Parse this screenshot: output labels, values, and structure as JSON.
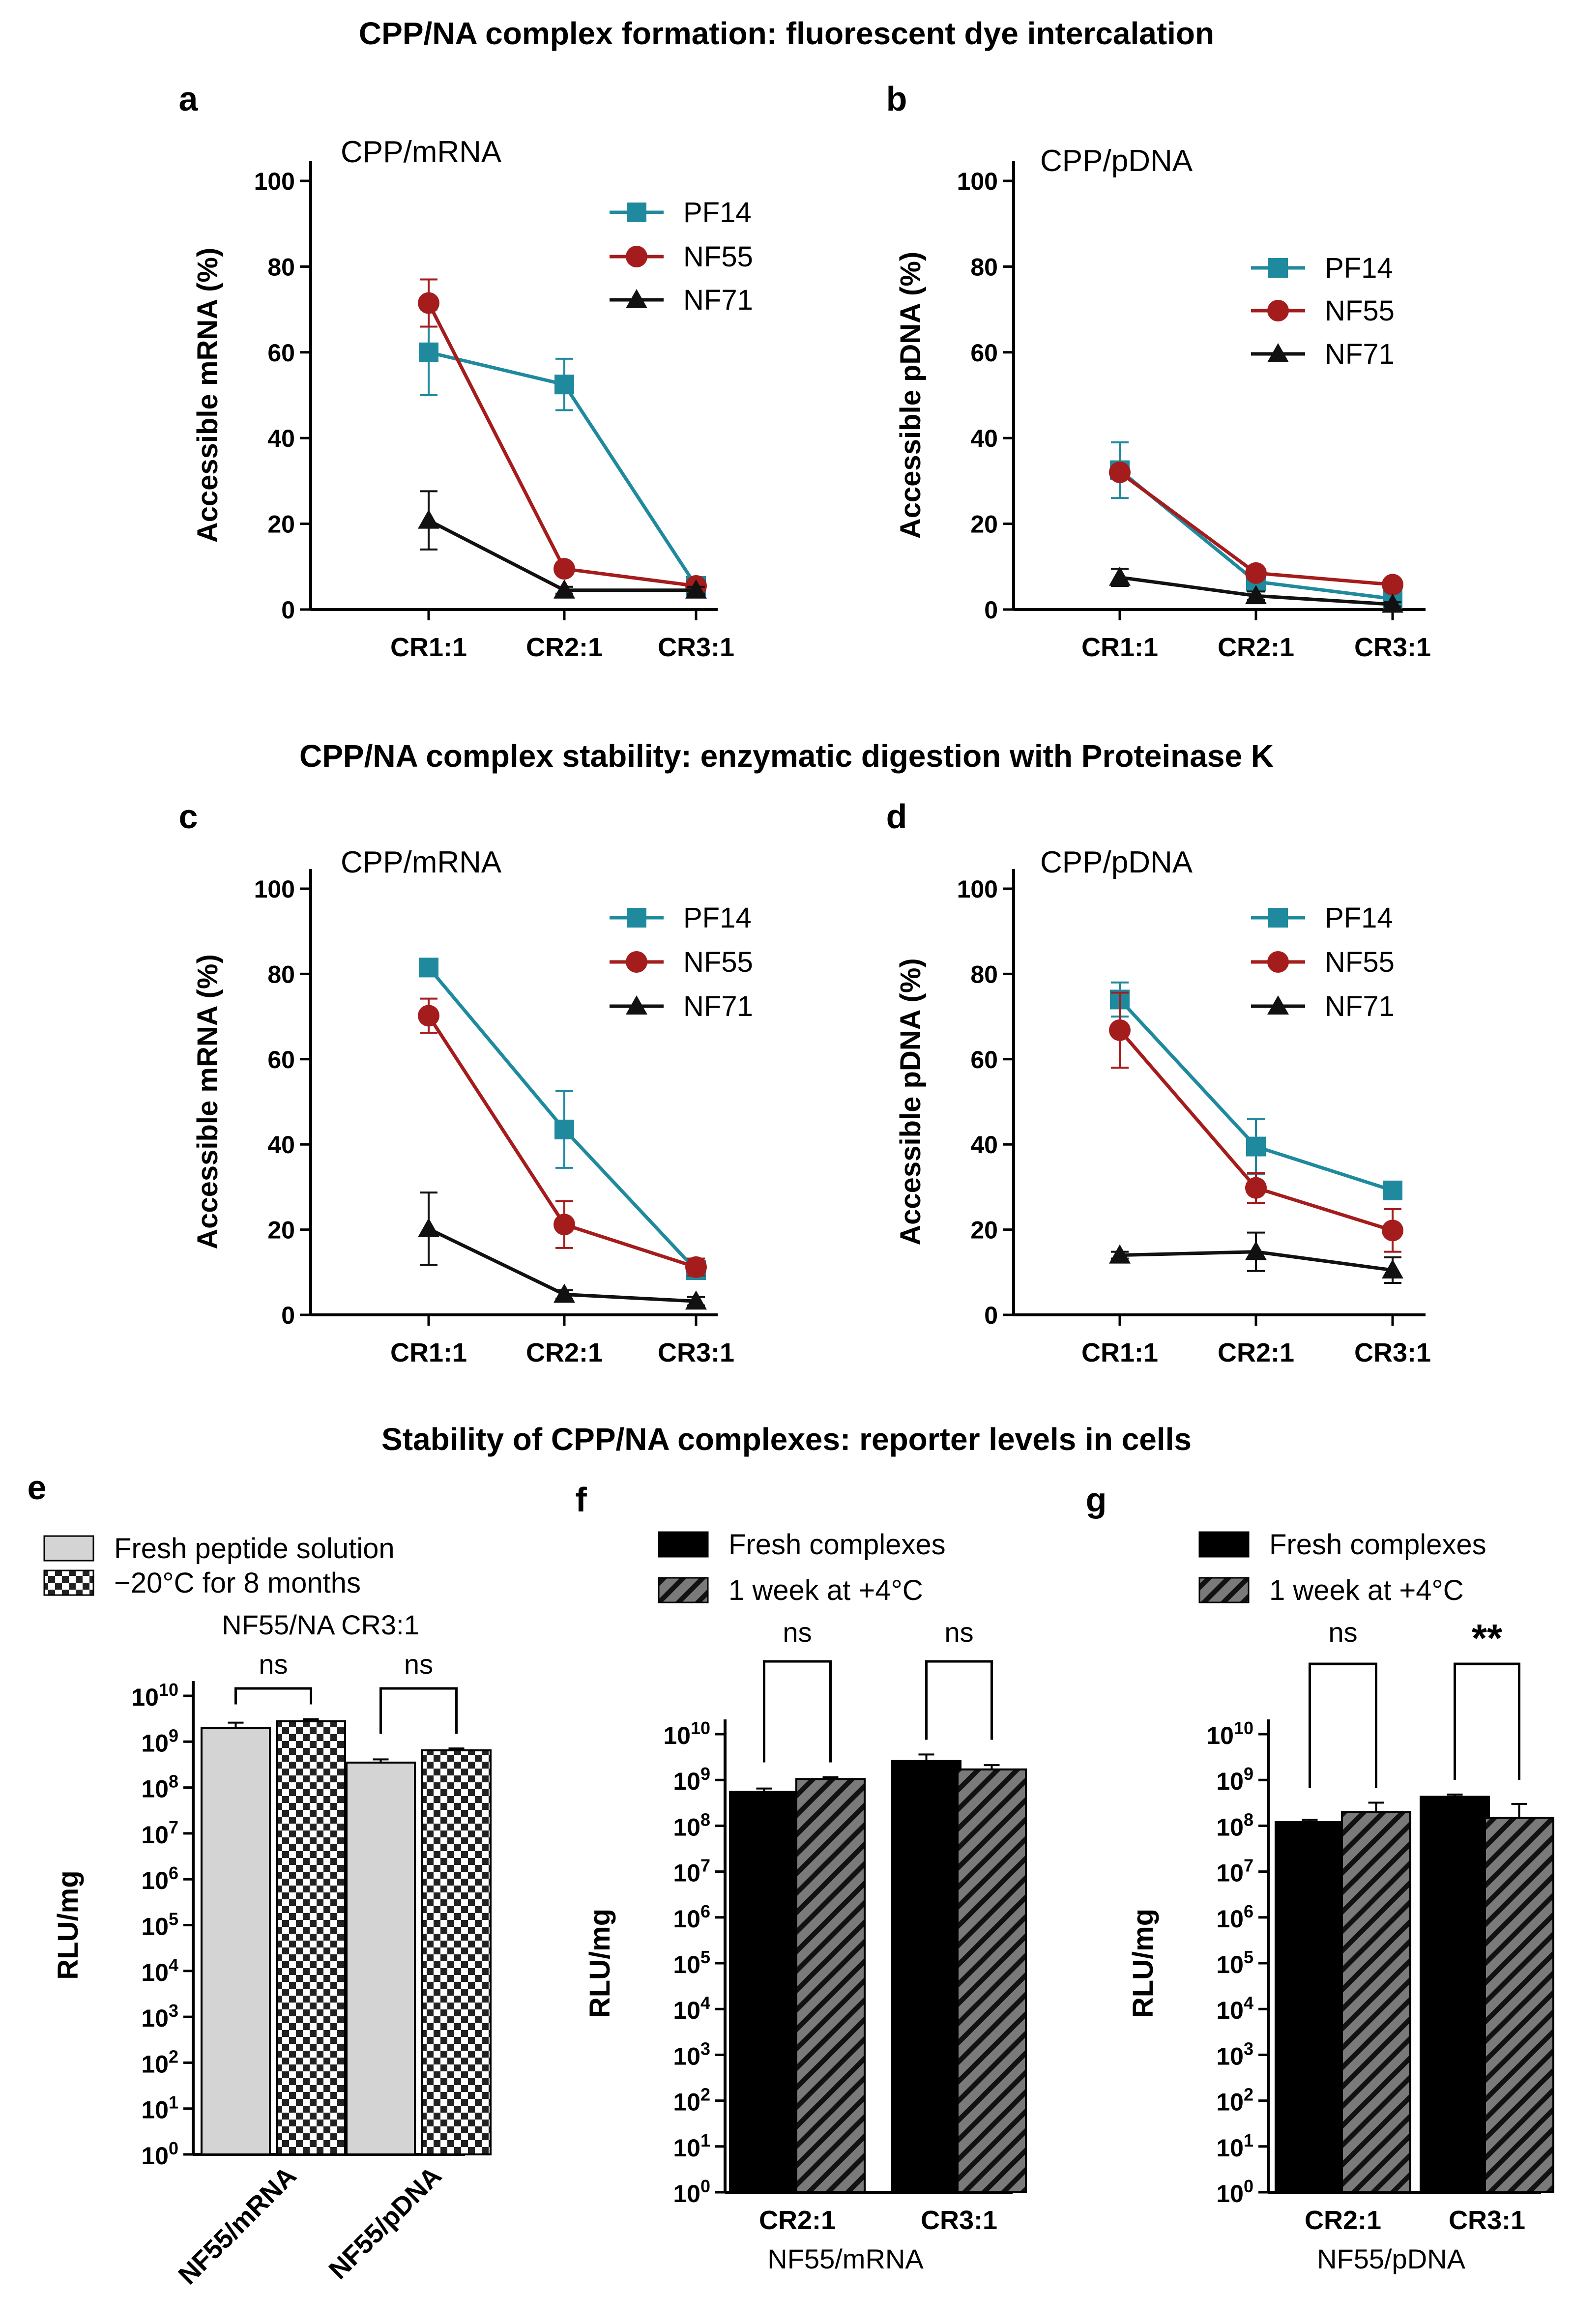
{
  "section_titles": [
    "CPP/NA complex formation: fluorescent dye intercalation",
    "CPP/NA complex stability: enzymatic digestion with Proteinase K",
    "Stability of CPP/NA complexes: reporter levels in cells"
  ],
  "colors": {
    "PF14": "#1f8a9e",
    "NF55": "#a51c1c",
    "NF71": "#111111",
    "fresh_f": "#000000",
    "week": "#7a7a7a",
    "fresh_e": "#d4d4d4"
  },
  "chart_data": [
    {
      "panel": "a",
      "type": "line",
      "title": "CPP/mRNA",
      "xlabel": "",
      "ylabel": "Accessible mRNA (%)",
      "ylim": [
        0,
        100
      ],
      "yticks": [
        "0",
        "20",
        "40",
        "60",
        "80",
        "100"
      ],
      "categories": [
        "CR1:1",
        "CR2:1",
        "CR3:1"
      ],
      "series": [
        {
          "name": "PF14",
          "values": [
            60,
            52.5,
            5.5
          ],
          "errors": [
            10,
            6,
            1.5
          ]
        },
        {
          "name": "NF55",
          "values": [
            71.5,
            9.5,
            5.5
          ],
          "errors": [
            5.5,
            1,
            0.5
          ]
        },
        {
          "name": "NF71",
          "values": [
            20.8,
            4.5,
            4.5
          ],
          "errors": [
            6.8,
            0.8,
            0.8
          ]
        }
      ]
    },
    {
      "panel": "b",
      "type": "line",
      "title": "CPP/pDNA",
      "xlabel": "",
      "ylabel": "Accessible pDNA (%)",
      "ylim": [
        0,
        100
      ],
      "yticks": [
        "0",
        "20",
        "40",
        "60",
        "80",
        "100"
      ],
      "categories": [
        "CR1:1",
        "CR2:1",
        "CR3:1"
      ],
      "series": [
        {
          "name": "PF14",
          "values": [
            32.5,
            6.5,
            2.5
          ],
          "errors": [
            6.5,
            1,
            0.5
          ]
        },
        {
          "name": "NF55",
          "values": [
            32,
            8.5,
            5.8
          ],
          "errors": [
            1,
            0.8,
            0.5
          ]
        },
        {
          "name": "NF71",
          "values": [
            7.5,
            3.2,
            1.2
          ],
          "errors": [
            2,
            1,
            0.5
          ]
        }
      ]
    },
    {
      "panel": "c",
      "type": "line",
      "title": "CPP/mRNA",
      "xlabel": "",
      "ylabel": "Accessible mRNA (%)",
      "ylim": [
        0,
        100
      ],
      "yticks": [
        "0",
        "20",
        "40",
        "60",
        "80",
        "100"
      ],
      "categories": [
        "CR1:1",
        "CR2:1",
        "CR3:1"
      ],
      "series": [
        {
          "name": "PF14",
          "values": [
            81.5,
            43.5,
            10.5
          ],
          "errors": [
            1.5,
            9,
            2
          ]
        },
        {
          "name": "NF55",
          "values": [
            70.2,
            21.2,
            11.2
          ],
          "errors": [
            4,
            5.5,
            2
          ]
        },
        {
          "name": "NF71",
          "values": [
            20.2,
            4.8,
            3.2
          ],
          "errors": [
            8.5,
            1,
            1
          ]
        }
      ]
    },
    {
      "panel": "d",
      "type": "line",
      "title": "CPP/pDNA",
      "xlabel": "",
      "ylabel": "Accessible pDNA (%)",
      "ylim": [
        0,
        100
      ],
      "yticks": [
        "0",
        "20",
        "40",
        "60",
        "80",
        "100"
      ],
      "categories": [
        "CR1:1",
        "CR2:1",
        "CR3:1"
      ],
      "series": [
        {
          "name": "PF14",
          "values": [
            74,
            39.5,
            29.2
          ],
          "errors": [
            4,
            6.5,
            1.5
          ]
        },
        {
          "name": "NF55",
          "values": [
            66.8,
            29.8,
            19.8
          ],
          "errors": [
            8.8,
            3.5,
            5
          ]
        },
        {
          "name": "NF71",
          "values": [
            14,
            14.8,
            10.5
          ],
          "errors": [
            0.8,
            4.5,
            3
          ]
        }
      ]
    },
    {
      "panel": "e",
      "type": "bar",
      "title": "NF55/NA CR3:1",
      "xlabel": "",
      "ylabel": "RLU/mg",
      "yscale": "log",
      "ylim_exp": [
        0,
        10
      ],
      "categories": [
        "NF55/mRNA",
        "NF55/pDNA"
      ],
      "series": [
        {
          "name": "Fresh peptide solution",
          "values": [
            2000000000,
            350000000
          ],
          "errors_upper": [
            600000000,
            60000000
          ]
        },
        {
          "name": "−20°C for 8 months",
          "values": [
            2800000000,
            650000000
          ],
          "errors_upper": [
            300000000,
            60000000
          ]
        }
      ],
      "significance": [
        "ns",
        "ns"
      ]
    },
    {
      "panel": "f",
      "type": "bar",
      "title": "",
      "xlabel": "NF55/mRNA",
      "ylabel": "RLU/mg",
      "yscale": "log",
      "ylim_exp": [
        0,
        10
      ],
      "categories": [
        "CR2:1",
        "CR3:1"
      ],
      "series": [
        {
          "name": "Fresh complexes",
          "values": [
            550000000,
            2600000000
          ],
          "errors_upper": [
            100000000,
            1000000000
          ]
        },
        {
          "name": "1 week at +4°C",
          "values": [
            1050000000,
            1700000000
          ],
          "errors_upper": [
            100000000,
            400000000
          ]
        }
      ],
      "significance": [
        "ns",
        "ns"
      ]
    },
    {
      "panel": "g",
      "type": "bar",
      "title": "",
      "xlabel": "NF55/pDNA",
      "ylabel": "RLU/mg",
      "yscale": "log",
      "ylim_exp": [
        0,
        10
      ],
      "categories": [
        "CR2:1",
        "CR3:1"
      ],
      "series": [
        {
          "name": "Fresh complexes",
          "values": [
            120000000,
            430000000
          ],
          "errors_upper": [
            15000000,
            50000000
          ]
        },
        {
          "name": "1 week at +4°C",
          "values": [
            200000000,
            150000000
          ],
          "errors_upper": [
            120000000,
            150000000
          ]
        }
      ],
      "significance": [
        "ns",
        "**"
      ]
    }
  ]
}
